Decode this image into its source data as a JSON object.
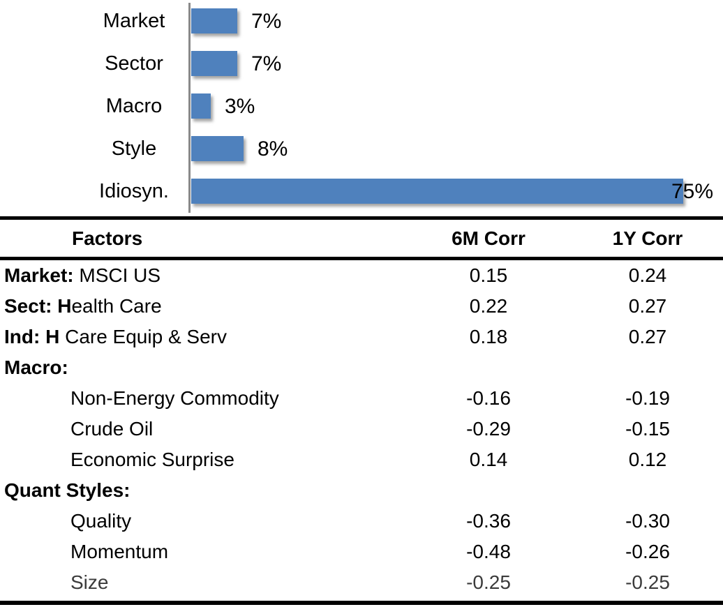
{
  "chart_data": [
    {
      "type": "bar",
      "orientation": "horizontal",
      "title": "",
      "categories": [
        "Market",
        "Sector",
        "Macro",
        "Style",
        "Idiosyn."
      ],
      "values": [
        7,
        7,
        3,
        8,
        75
      ],
      "data_labels": [
        "7%",
        "7%",
        "3%",
        "8%",
        "75%"
      ],
      "unit": "%",
      "xlim": [
        0,
        80
      ],
      "grid": false,
      "legend": false,
      "bar_color": "#4F81BD",
      "axis_color": "#8A8A8A"
    },
    {
      "type": "table",
      "columns": [
        "Factors",
        "6M Corr",
        "1Y Corr"
      ],
      "rows": [
        {
          "factor_bold": "Market:",
          "factor_rest": " MSCI US",
          "indent": false,
          "muted": false,
          "corr_6m": "0.15",
          "corr_1y": "0.24"
        },
        {
          "factor_bold": "Sect: H",
          "factor_rest": "ealth Care",
          "indent": false,
          "muted": false,
          "corr_6m": "0.22",
          "corr_1y": "0.27"
        },
        {
          "factor_bold": "Ind: H",
          "factor_rest": " Care Equip & Serv",
          "indent": false,
          "muted": false,
          "corr_6m": "0.18",
          "corr_1y": "0.27"
        },
        {
          "factor_bold": "Macro:",
          "factor_rest": "",
          "indent": false,
          "muted": false,
          "corr_6m": "",
          "corr_1y": ""
        },
        {
          "factor_bold": "",
          "factor_rest": "Non-Energy Commodity",
          "indent": true,
          "muted": false,
          "corr_6m": "-0.16",
          "corr_1y": "-0.19"
        },
        {
          "factor_bold": "",
          "factor_rest": "Crude Oil",
          "indent": true,
          "muted": false,
          "corr_6m": "-0.29",
          "corr_1y": "-0.15"
        },
        {
          "factor_bold": "",
          "factor_rest": "Economic Surprise",
          "indent": true,
          "muted": false,
          "corr_6m": "0.14",
          "corr_1y": "0.12"
        },
        {
          "factor_bold": "Quant Styles:",
          "factor_rest": "",
          "indent": false,
          "muted": false,
          "corr_6m": "",
          "corr_1y": ""
        },
        {
          "factor_bold": "",
          "factor_rest": "Quality",
          "indent": true,
          "muted": false,
          "corr_6m": "-0.36",
          "corr_1y": "-0.30"
        },
        {
          "factor_bold": "",
          "factor_rest": "Momentum",
          "indent": true,
          "muted": false,
          "corr_6m": "-0.48",
          "corr_1y": "-0.26"
        },
        {
          "factor_bold": "",
          "factor_rest": "Size",
          "indent": true,
          "muted": true,
          "corr_6m": "-0.25",
          "corr_1y": "-0.25"
        }
      ]
    }
  ]
}
